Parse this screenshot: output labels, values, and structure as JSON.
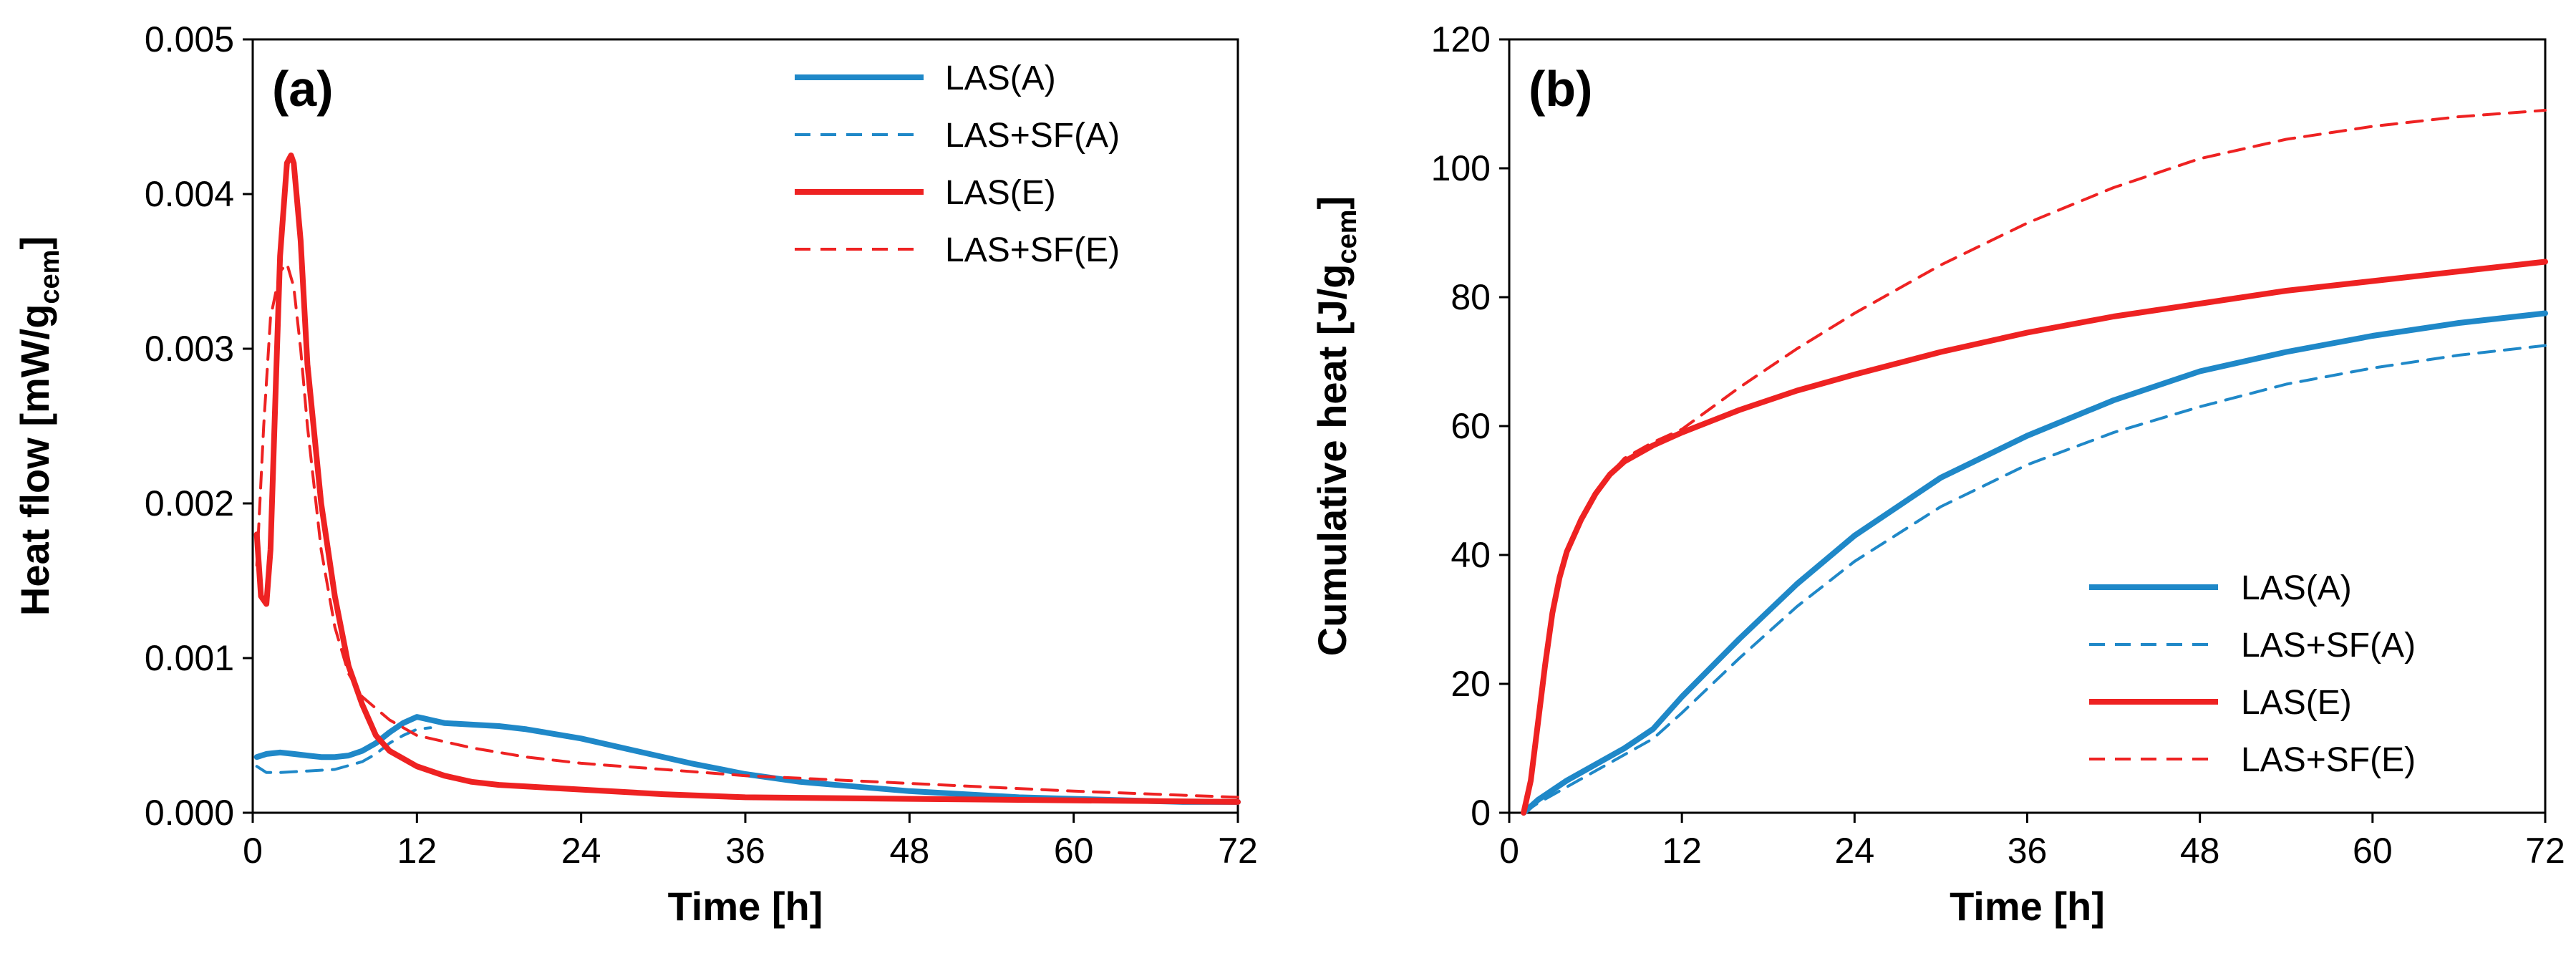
{
  "colors": {
    "blue": "#1f88c8",
    "red": "#ee2222",
    "axis": "#000000"
  },
  "chart_data": [
    {
      "type": "line",
      "panel_label": "(a)",
      "xlabel": "Time [h]",
      "ylabel_main": "Heat flow [mW/g",
      "ylabel_sub": "cem",
      "ylabel_end": "]",
      "xlim": [
        0,
        72
      ],
      "ylim": [
        0,
        0.005
      ],
      "xticks": [
        0,
        12,
        24,
        36,
        48,
        60,
        72
      ],
      "xtick_labels": [
        "0",
        "12",
        "24",
        "36",
        "48",
        "60",
        "72"
      ],
      "yticks": [
        0,
        0.001,
        0.002,
        0.003,
        0.004,
        0.005
      ],
      "ytick_labels": [
        "0.000",
        "0.001",
        "0.002",
        "0.003",
        "0.004",
        "0.005"
      ],
      "legend_position": "top-right",
      "series": [
        {
          "name": "LAS(A)",
          "color": "blue",
          "style": "solid",
          "x": [
            0.3,
            1,
            2,
            3,
            4,
            5,
            6,
            7,
            8,
            9,
            10,
            11,
            12,
            12.5,
            13,
            14,
            16,
            18,
            20,
            24,
            28,
            32,
            36,
            40,
            44,
            48,
            52,
            56,
            60,
            64,
            68,
            72
          ],
          "y": [
            0.00036,
            0.00038,
            0.00039,
            0.00038,
            0.00037,
            0.00036,
            0.00036,
            0.00037,
            0.0004,
            0.00045,
            0.00052,
            0.00058,
            0.00062,
            0.00061,
            0.0006,
            0.00058,
            0.00057,
            0.00056,
            0.00054,
            0.00048,
            0.0004,
            0.00032,
            0.00025,
            0.0002,
            0.00017,
            0.00014,
            0.00012,
            0.0001,
            9e-05,
            8e-05,
            7e-05,
            7e-05
          ]
        },
        {
          "name": "LAS+SF(A)",
          "color": "blue",
          "style": "dashed",
          "x": [
            0.3,
            1,
            2,
            4,
            6,
            8,
            9,
            10,
            11,
            12,
            13
          ],
          "y": [
            0.0003,
            0.00026,
            0.00026,
            0.00027,
            0.00028,
            0.00033,
            0.00038,
            0.00045,
            0.0005,
            0.00054,
            0.00055
          ]
        },
        {
          "name": "LAS(E)",
          "color": "red",
          "style": "solid",
          "x": [
            0.3,
            0.6,
            1,
            1.3,
            1.7,
            2,
            2.5,
            2.8,
            3,
            3.5,
            4,
            5,
            6,
            7,
            8,
            9,
            10,
            12,
            14,
            16,
            18,
            20,
            24,
            30,
            36,
            48,
            60,
            72
          ],
          "y": [
            0.0018,
            0.0014,
            0.00135,
            0.0017,
            0.0028,
            0.0036,
            0.0042,
            0.00425,
            0.0042,
            0.0037,
            0.0029,
            0.002,
            0.0014,
            0.00095,
            0.0007,
            0.0005,
            0.0004,
            0.0003,
            0.00024,
            0.0002,
            0.00018,
            0.00017,
            0.00015,
            0.00012,
            0.0001,
            9e-05,
            8e-05,
            7e-05
          ]
        },
        {
          "name": "LAS+SF(E)",
          "color": "red",
          "style": "dashed",
          "x": [
            0.3,
            0.8,
            1.3,
            2,
            2.5,
            3,
            3.5,
            4,
            5,
            6,
            7,
            8,
            10,
            12,
            16,
            20,
            24,
            30,
            36,
            48,
            60,
            72
          ],
          "y": [
            0.0016,
            0.0025,
            0.0032,
            0.0035,
            0.00355,
            0.0034,
            0.003,
            0.0025,
            0.0017,
            0.0012,
            0.0009,
            0.00075,
            0.0006,
            0.0005,
            0.00042,
            0.00036,
            0.00032,
            0.00028,
            0.00024,
            0.00019,
            0.00014,
            0.0001
          ]
        }
      ]
    },
    {
      "type": "line",
      "panel_label": "(b)",
      "xlabel": "Time [h]",
      "ylabel_main": "Cumulative heat [J/g",
      "ylabel_sub": "cem",
      "ylabel_end": "]",
      "xlim": [
        0,
        72
      ],
      "ylim": [
        0,
        120
      ],
      "xticks": [
        0,
        12,
        24,
        36,
        48,
        60,
        72
      ],
      "xtick_labels": [
        "0",
        "12",
        "24",
        "36",
        "48",
        "60",
        "72"
      ],
      "yticks": [
        0,
        20,
        40,
        60,
        80,
        100,
        120
      ],
      "ytick_labels": [
        "0",
        "20",
        "40",
        "60",
        "80",
        "100",
        "120"
      ],
      "legend_position": "bottom-right",
      "series": [
        {
          "name": "LAS(A)",
          "color": "blue",
          "style": "solid",
          "x": [
            1,
            2,
            4,
            6,
            8,
            10,
            12,
            16,
            20,
            24,
            30,
            36,
            42,
            48,
            54,
            60,
            66,
            72
          ],
          "y": [
            0,
            2,
            5,
            7.5,
            10,
            13,
            18,
            27,
            35.5,
            43,
            52,
            58.5,
            64,
            68.5,
            71.5,
            74,
            76,
            77.5
          ]
        },
        {
          "name": "LAS+SF(A)",
          "color": "blue",
          "style": "dashed",
          "x": [
            1,
            2,
            4,
            6,
            8,
            10,
            12,
            16,
            20,
            24,
            30,
            36,
            42,
            48,
            54,
            60,
            66,
            72
          ],
          "y": [
            0,
            1.5,
            4,
            6.5,
            9,
            11.5,
            15.5,
            24,
            32,
            39,
            47.5,
            54,
            59,
            63,
            66.5,
            69,
            71,
            72.5
          ]
        },
        {
          "name": "LAS(E)",
          "color": "red",
          "style": "solid",
          "x": [
            1,
            1.5,
            2,
            2.5,
            3,
            3.5,
            4,
            5,
            6,
            7,
            8,
            10,
            12,
            16,
            20,
            24,
            30,
            36,
            42,
            48,
            54,
            60,
            66,
            72
          ],
          "y": [
            0,
            5,
            14,
            23,
            31,
            36.5,
            40.5,
            45.5,
            49.5,
            52.5,
            54.5,
            57,
            59,
            62.5,
            65.5,
            68,
            71.5,
            74.5,
            77,
            79,
            81,
            82.5,
            84,
            85.5
          ]
        },
        {
          "name": "LAS+SF(E)",
          "color": "red",
          "style": "dashed",
          "x": [
            1,
            1.5,
            2,
            2.5,
            3,
            3.5,
            4,
            5,
            6,
            7,
            8,
            10,
            12,
            16,
            20,
            24,
            30,
            36,
            42,
            48,
            54,
            60,
            66,
            72
          ],
          "y": [
            0,
            6,
            15,
            24,
            31,
            36,
            40,
            45.5,
            49.5,
            52.5,
            55,
            57.5,
            59.5,
            66,
            72,
            77.5,
            85,
            91.5,
            97,
            101.5,
            104.5,
            106.5,
            108,
            109
          ]
        }
      ]
    }
  ]
}
